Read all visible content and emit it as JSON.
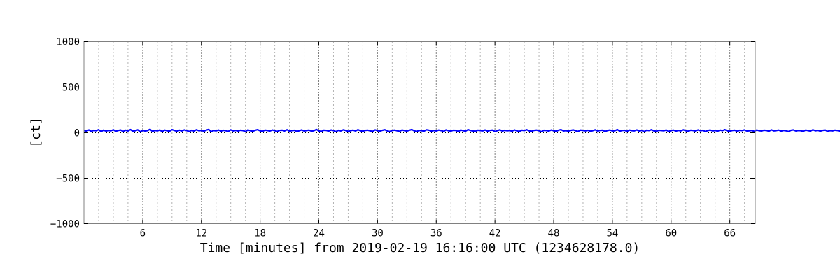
{
  "chart_data": {
    "type": "line",
    "title": "",
    "xlabel": "Time [minutes] from 2019-02-19 16:16:00 UTC (1234628178.0)",
    "ylabel": "[ct]",
    "xlim": [
      0.0,
      68.6
    ],
    "ylim": [
      -1000,
      1000
    ],
    "xticks": [
      6,
      12,
      18,
      24,
      30,
      36,
      42,
      48,
      54,
      60,
      66
    ],
    "yticks": [
      -1000,
      -500,
      0,
      500,
      1000
    ],
    "x_minor_step": 1.5,
    "grid": true,
    "legend": "none",
    "series": [
      {
        "color": "#0000ff",
        "sample_step_minutes": 0.25,
        "values": [
          24,
          19,
          31,
          15,
          27,
          22,
          34,
          12,
          29,
          18,
          26,
          21,
          33,
          16,
          25,
          30,
          14,
          28,
          20,
          35,
          17,
          23,
          32,
          11,
          27,
          19,
          24,
          38,
          15,
          26,
          21,
          30,
          13,
          29,
          22,
          18,
          34,
          25,
          16,
          28,
          20,
          31,
          24,
          14,
          27,
          19,
          33,
          22,
          26,
          17,
          29,
          36,
          12,
          25,
          21,
          30,
          18,
          27,
          23,
          15,
          32,
          20,
          26,
          19,
          28,
          24,
          13,
          31,
          22,
          17,
          27,
          34,
          21,
          16,
          29,
          25,
          19,
          30,
          23,
          14,
          26,
          28,
          20,
          33,
          18,
          24,
          27,
          15,
          22,
          31,
          19,
          25,
          29,
          17,
          23,
          36,
          21,
          14,
          28,
          26,
          18,
          30,
          24,
          12,
          27,
          20,
          32,
          25,
          16,
          23,
          29,
          19,
          34,
          22,
          17,
          26,
          28,
          21,
          15,
          31,
          24,
          18,
          27,
          33,
          20,
          13,
          25,
          29,
          22,
          16,
          30,
          24,
          19,
          27,
          35,
          21,
          14,
          26,
          23,
          18,
          32,
          28,
          17,
          25,
          20,
          29,
          24,
          15,
          31,
          22,
          19,
          27,
          26,
          13,
          30,
          23,
          18,
          34,
          25,
          20,
          16,
          28,
          24,
          21,
          30,
          17,
          26,
          29,
          14,
          23,
          32,
          19,
          27,
          22,
          25,
          18,
          31,
          20,
          15,
          28,
          24,
          33,
          21,
          17,
          26,
          29,
          22,
          12,
          27,
          25,
          19,
          30,
          23,
          16,
          28,
          34,
          20,
          24,
          18,
          26,
          31,
          22,
          15,
          29,
          25,
          21,
          27,
          17,
          23,
          32,
          19,
          26,
          28,
          14,
          24,
          30,
          20,
          22,
          35,
          18,
          25,
          27,
          16,
          29,
          23,
          21,
          31,
          19,
          26,
          13,
          28,
          24,
          33,
          20,
          17,
          27,
          25,
          22,
          30,
          15,
          24,
          29,
          18,
          26,
          21,
          32,
          23,
          16,
          28,
          25,
          19,
          31,
          22,
          27,
          14,
          24,
          30,
          20,
          26,
          17,
          29,
          23,
          34,
          21,
          18,
          25,
          28,
          16,
          27,
          24,
          31,
          19,
          22,
          26,
          15,
          30,
          23,
          20,
          28,
          25,
          17,
          32,
          21,
          24,
          29,
          18,
          26,
          22,
          13,
          27,
          31,
          20,
          25,
          23,
          16,
          29,
          24,
          19,
          33,
          22,
          27,
          18,
          26,
          30,
          15,
          24,
          21,
          28,
          25,
          17,
          31,
          23,
          20,
          27,
          24,
          14,
          29,
          26,
          22,
          32,
          19,
          25,
          28,
          16,
          23,
          30,
          21,
          27,
          18,
          24,
          26,
          34,
          20,
          15,
          29,
          23,
          25,
          22,
          31,
          17,
          27,
          24,
          19,
          28,
          26,
          13,
          30,
          22,
          25,
          20,
          33,
          18,
          24,
          27,
          16,
          29,
          23,
          21,
          26,
          31,
          19,
          25,
          14,
          28,
          24,
          22,
          30,
          17,
          27,
          23,
          20,
          32,
          25,
          18,
          26,
          29,
          15,
          24,
          22,
          28,
          21,
          31,
          19,
          27,
          24,
          16,
          25,
          30,
          23,
          20,
          26,
          18,
          33,
          22,
          28,
          17,
          24,
          29,
          21,
          25,
          14,
          30,
          23,
          27,
          19,
          26,
          24,
          32,
          18,
          22,
          28,
          25,
          16,
          29,
          21,
          27,
          23,
          20,
          31,
          24,
          17,
          26,
          25,
          13,
          30,
          22,
          28,
          19,
          24,
          27,
          35,
          18,
          23,
          29,
          21,
          26,
          16,
          31,
          24,
          20,
          27,
          25,
          22,
          28,
          15,
          30,
          23,
          19,
          26,
          24,
          32,
          17,
          27,
          22,
          29,
          21,
          25,
          18,
          28,
          24,
          14,
          31,
          26,
          20,
          23,
          27,
          25,
          19,
          30,
          22,
          16,
          28,
          24,
          33,
          21,
          26,
          18,
          29,
          23,
          25,
          17,
          31,
          27,
          20,
          24,
          22,
          28,
          15,
          26,
          30,
          19,
          25,
          23,
          27,
          21,
          32,
          18,
          24,
          29,
          16,
          26,
          22,
          28,
          25,
          20,
          31,
          17,
          27,
          23,
          24,
          19,
          30,
          26,
          14,
          28,
          22,
          25,
          29,
          21,
          33,
          18,
          24,
          27,
          23,
          16,
          30,
          25,
          20,
          26,
          28,
          22,
          17,
          31,
          24,
          19,
          27,
          25,
          23,
          29,
          15,
          26,
          21,
          32,
          24,
          18,
          28,
          22,
          25,
          30,
          20,
          16,
          27,
          24,
          29,
          23,
          21,
          26,
          34,
          19,
          25,
          28,
          17,
          22,
          30,
          24,
          27,
          20,
          18,
          26,
          31,
          23,
          25,
          14,
          29,
          22,
          27,
          24,
          19,
          32,
          21,
          26,
          28,
          16,
          25,
          23,
          30,
          20,
          27,
          24,
          18,
          29,
          26,
          22,
          15,
          31,
          23,
          25,
          28,
          21,
          19,
          27,
          24,
          33,
          17,
          26,
          30,
          22,
          25,
          20,
          28,
          23,
          16,
          29,
          24,
          26,
          21,
          31,
          18,
          27,
          25,
          22,
          30,
          19,
          24,
          28,
          14,
          26,
          23,
          32,
          20,
          25,
          27,
          17,
          29,
          22,
          24,
          31,
          21,
          26,
          18,
          28,
          25,
          23,
          16,
          30,
          24,
          20,
          27,
          22,
          29,
          19,
          33,
          25,
          26,
          17,
          28,
          23,
          24,
          31,
          21,
          18,
          27,
          25,
          30,
          22,
          15,
          26,
          29,
          24,
          20,
          28,
          23,
          27,
          19,
          32,
          25,
          22,
          17,
          30,
          24,
          26,
          21,
          28,
          18,
          29,
          23,
          25,
          20,
          31,
          27,
          16,
          24,
          22,
          28,
          26,
          19,
          30,
          23,
          25,
          33,
          17,
          27,
          24,
          21,
          29,
          22,
          26,
          18,
          31,
          25,
          20,
          28,
          23,
          15,
          27,
          24,
          30,
          22,
          26,
          19,
          29,
          21,
          25,
          32,
          17,
          28,
          24,
          23,
          20,
          30,
          26,
          18,
          27,
          22,
          25,
          29,
          16,
          31,
          24,
          21,
          28,
          23,
          26,
          19,
          27,
          25,
          22,
          30,
          14,
          29,
          24,
          20,
          26,
          23,
          28,
          18,
          32,
          25,
          27,
          21,
          24,
          17,
          30,
          22,
          26,
          29,
          19,
          25,
          23,
          28,
          20,
          31,
          16,
          27,
          24,
          22,
          26,
          25,
          30,
          18,
          29,
          21,
          23,
          27,
          24,
          19,
          33,
          26,
          22,
          28,
          17,
          25,
          30,
          20,
          24,
          27,
          23,
          21,
          29,
          15,
          26,
          31,
          22,
          25,
          18,
          28,
          24,
          27,
          20,
          30,
          23,
          26,
          16,
          29,
          22,
          25,
          32,
          19,
          27,
          24,
          21,
          28,
          26,
          17,
          31,
          23,
          25,
          20,
          29,
          22,
          27,
          24,
          18,
          30,
          26,
          14,
          28,
          21,
          25,
          33,
          23,
          27,
          19,
          24,
          29,
          22,
          26,
          17,
          31,
          25,
          20,
          28,
          24,
          23,
          27,
          16,
          30,
          21,
          26,
          29,
          19,
          25,
          22,
          32,
          24,
          18,
          28,
          27,
          23,
          20,
          30,
          25,
          17,
          26,
          29,
          22,
          24,
          21,
          31,
          19,
          27,
          25,
          23,
          28,
          15,
          26,
          30,
          24,
          20,
          29,
          22,
          27,
          18,
          32,
          25,
          23,
          26,
          21,
          28,
          17,
          30,
          24,
          19,
          27,
          25,
          22,
          29,
          16,
          26,
          31,
          23,
          20,
          28,
          24,
          27,
          18,
          30,
          22,
          25,
          33,
          21,
          26,
          19,
          29,
          24,
          23,
          28,
          17,
          31,
          25,
          20,
          27,
          26,
          22,
          30,
          15,
          24,
          29,
          23,
          26,
          19,
          28,
          25,
          32,
          21,
          27,
          18,
          24,
          30,
          22,
          26,
          20,
          29,
          23,
          25,
          17,
          31,
          28,
          24,
          21,
          27,
          26,
          19,
          30,
          22,
          25,
          16,
          29,
          24,
          28,
          23,
          20,
          33,
          26,
          18,
          27,
          25,
          22,
          30,
          21,
          24,
          29,
          17,
          26,
          28,
          23,
          31,
          19,
          25,
          27,
          22,
          20,
          30,
          24,
          16,
          28,
          26,
          23,
          29,
          18,
          32,
          25,
          21,
          27,
          24,
          26,
          19,
          30,
          22,
          28,
          17,
          25,
          31,
          23,
          24,
          20,
          29,
          27,
          21,
          26,
          18,
          30,
          25,
          23,
          28,
          15,
          27,
          24,
          22,
          32,
          20,
          26,
          29,
          19,
          25,
          23,
          28,
          21,
          31,
          17,
          27,
          24,
          26,
          22,
          30,
          18,
          29,
          25,
          20,
          28,
          23,
          27,
          16,
          31,
          24,
          26,
          21,
          30,
          22,
          25,
          33,
          19,
          28,
          27,
          24,
          20,
          29,
          23,
          26,
          17,
          31,
          25,
          22,
          28,
          24,
          27,
          19,
          30,
          21,
          26,
          18,
          29,
          25,
          23,
          32,
          20,
          28,
          24,
          26,
          22,
          30,
          17,
          27,
          25,
          21,
          29,
          23,
          26,
          19,
          31,
          24,
          28,
          22,
          25,
          20,
          30,
          18,
          27,
          26,
          23,
          29,
          24,
          21,
          33,
          19,
          28,
          25,
          22,
          30,
          26,
          17,
          27,
          24,
          29,
          23,
          20,
          31,
          25,
          28,
          21,
          26,
          18,
          30,
          24,
          27,
          22,
          29,
          19,
          25,
          32,
          23,
          26,
          20,
          28,
          24,
          31,
          22,
          27,
          17,
          30,
          25,
          21,
          29,
          24,
          28,
          23,
          19,
          26,
          33,
          22,
          27,
          24,
          20,
          30,
          25,
          26,
          21,
          29,
          18,
          31,
          24,
          28,
          23,
          27,
          20,
          30,
          22,
          26,
          19,
          29,
          25,
          32,
          21,
          28,
          24,
          23,
          27,
          17,
          31,
          26,
          22,
          30,
          24,
          20,
          29,
          25,
          28,
          21,
          33,
          23,
          27,
          19,
          30,
          24,
          26,
          22,
          29,
          18,
          31,
          25,
          28,
          23,
          27,
          21,
          30,
          24,
          34,
          20,
          26,
          29,
          22,
          25,
          19,
          31,
          27,
          24,
          30,
          23,
          28,
          21,
          26,
          32,
          20,
          29,
          25,
          27,
          22,
          30,
          24,
          18,
          28,
          26,
          31,
          23,
          25,
          21,
          29,
          27,
          24,
          33,
          20,
          30,
          22,
          26,
          28,
          25,
          19,
          31,
          24,
          29,
          23,
          27,
          21,
          30,
          26,
          22,
          32,
          25,
          28,
          20,
          24,
          29,
          27,
          23,
          31,
          21,
          26,
          30,
          25,
          22,
          28,
          19,
          33,
          24,
          27,
          29,
          23,
          30,
          26,
          21,
          28,
          25,
          31,
          24,
          22,
          27,
          30,
          20,
          29,
          26,
          24,
          32,
          23,
          28,
          25,
          31,
          22,
          27,
          30,
          24,
          29,
          21,
          33,
          26,
          28,
          25,
          23,
          30,
          27,
          24,
          31,
          22,
          29,
          26,
          34,
          25,
          28,
          23,
          30,
          27,
          32,
          24
        ]
      }
    ]
  }
}
